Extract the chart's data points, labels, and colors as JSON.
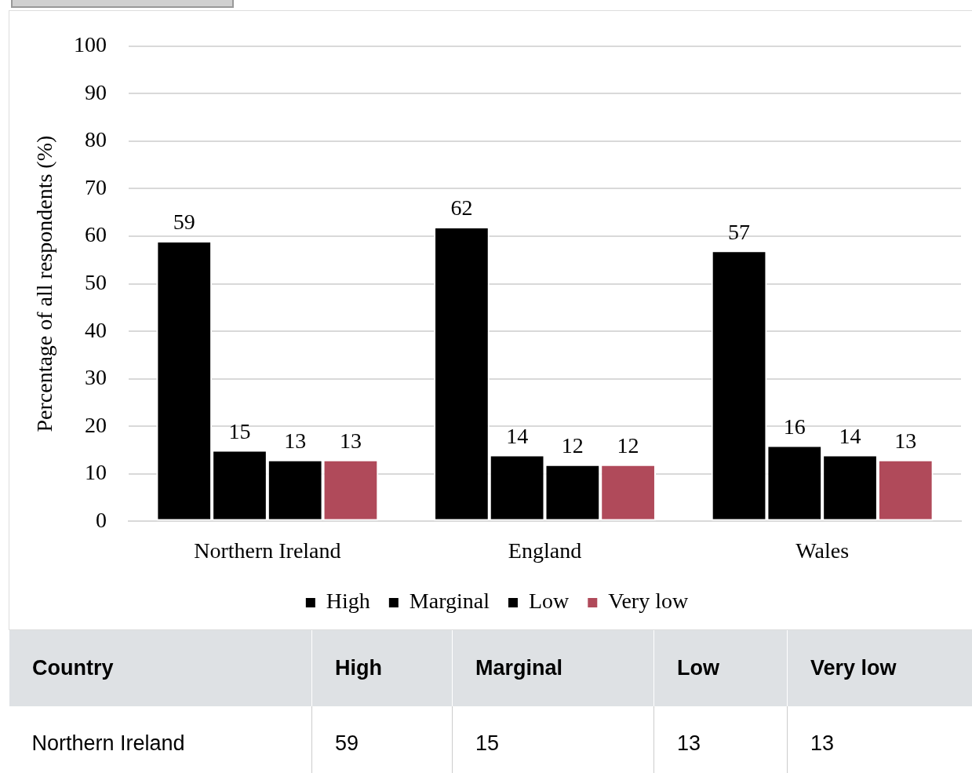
{
  "chart_data": {
    "type": "bar",
    "ylabel": "Percentage of all respondents (%)",
    "categories": [
      "Northern Ireland",
      "England",
      "Wales"
    ],
    "series": [
      {
        "name": "High",
        "color": "#000000",
        "values": [
          59,
          62,
          57
        ],
        "value_labels": [
          "59",
          "62",
          "57"
        ]
      },
      {
        "name": "Marginal",
        "color": "#000000",
        "values": [
          15,
          14,
          16
        ],
        "value_labels": [
          "15",
          "14",
          "16"
        ]
      },
      {
        "name": "Low",
        "color": "#000000",
        "values": [
          13,
          12,
          14
        ],
        "value_labels": [
          "13",
          "12",
          "14"
        ]
      },
      {
        "name": "Very low",
        "color": "#b04a5a",
        "values": [
          13,
          12,
          13
        ],
        "value_labels": [
          "13",
          "12",
          "13"
        ]
      }
    ],
    "ylim": [
      0,
      100
    ],
    "yticks": [
      0,
      10,
      20,
      30,
      40,
      50,
      60,
      70,
      80,
      90,
      100
    ],
    "grid": "y",
    "legend": "bottom",
    "annotations": [
      "Country"
    ]
  }
}
